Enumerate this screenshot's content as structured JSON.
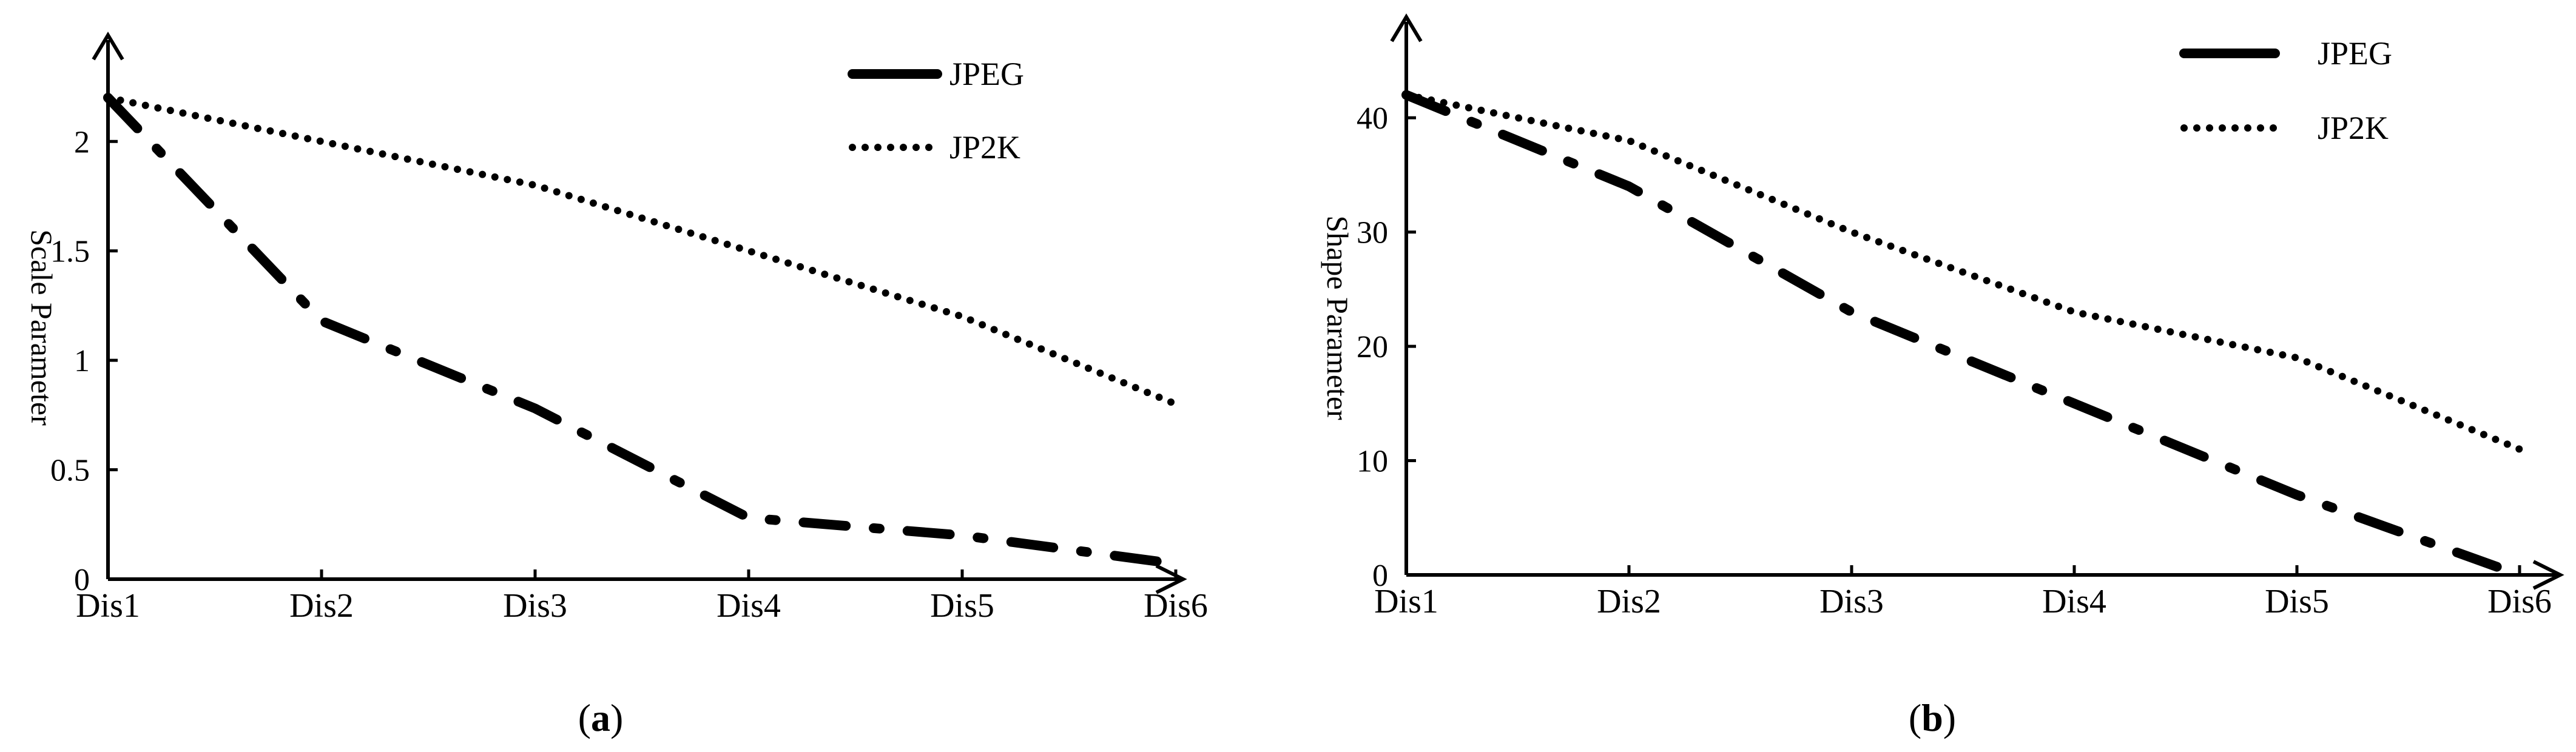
{
  "chart_data": [
    {
      "type": "line",
      "panel_label": "a",
      "categories": [
        "Dis1",
        "Dis2",
        "Dis3",
        "Dis4",
        "Dis5",
        "Dis6"
      ],
      "ylabel": "Scale Parameter",
      "ylim": [
        0,
        2.3
      ],
      "yticks": [
        0,
        0.5,
        1,
        1.5,
        2
      ],
      "ytick_labels": [
        "0",
        "0.5",
        "1",
        "1.5",
        "2"
      ],
      "legend_position": "top-right",
      "grid": false,
      "series": [
        {
          "name": "JPEG",
          "style": "dashdot",
          "values": [
            2.2,
            1.18,
            0.78,
            0.28,
            0.2,
            0.07
          ]
        },
        {
          "name": "JP2K",
          "style": "dotted",
          "values": [
            2.2,
            2.0,
            1.8,
            1.5,
            1.2,
            0.8
          ]
        }
      ]
    },
    {
      "type": "line",
      "panel_label": "b",
      "categories": [
        "Dis1",
        "Dis2",
        "Dis3",
        "Dis4",
        "Dis5",
        "Dis6"
      ],
      "ylabel": "Shape Parameter",
      "ylim": [
        0,
        45
      ],
      "yticks": [
        0,
        10,
        20,
        30,
        40
      ],
      "ytick_labels": [
        "0",
        "10",
        "20",
        "30",
        "40"
      ],
      "legend_position": "top-right",
      "grid": false,
      "series": [
        {
          "name": "JPEG",
          "style": "dashdot",
          "values": [
            42,
            34,
            23,
            15,
            7,
            0
          ]
        },
        {
          "name": "JP2K",
          "style": "dotted",
          "values": [
            42,
            38,
            30,
            23,
            19,
            11
          ]
        }
      ]
    }
  ],
  "colors": {
    "ink": "#000000",
    "background": "#ffffff"
  }
}
